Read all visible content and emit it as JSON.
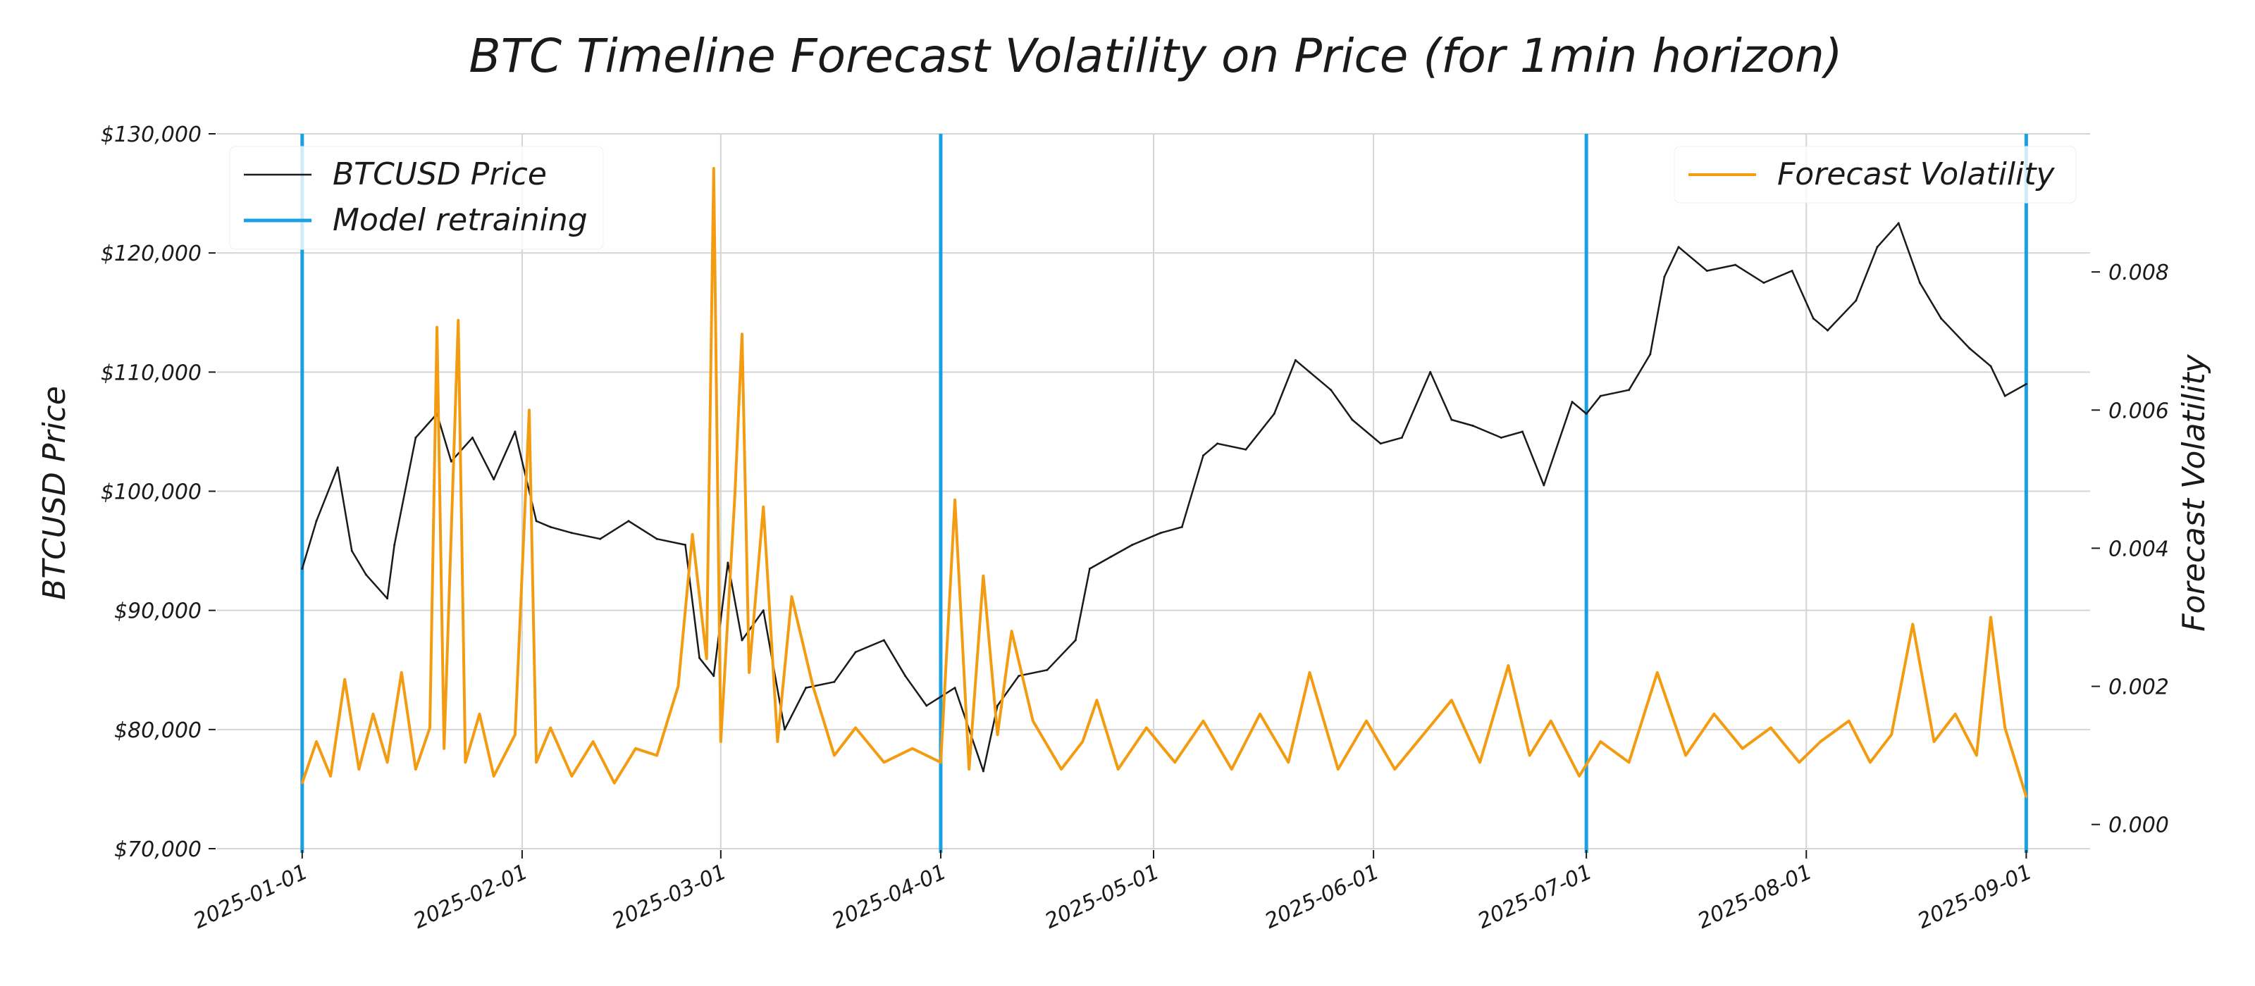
{
  "chart_data": {
    "type": "line",
    "title": "BTC Timeline Forecast Volatility on Price (for 1min horizon)",
    "ylabel": "BTCUSD Price",
    "y2label": "Forecast Volatility",
    "xlim": [
      "2024-12-20",
      "2025-09-10"
    ],
    "ylim": [
      70000,
      130000
    ],
    "y2lim": [
      -0.00035,
      0.01
    ],
    "x_ticks": [
      "2025-01-01",
      "2025-02-01",
      "2025-03-01",
      "2025-04-01",
      "2025-05-01",
      "2025-06-01",
      "2025-07-01",
      "2025-08-01",
      "2025-09-01"
    ],
    "y_ticks": [
      "$70,000",
      "$80,000",
      "$90,000",
      "$100,000",
      "$110,000",
      "$120,000",
      "$130,000"
    ],
    "y2_ticks": [
      "0.000",
      "0.002",
      "0.004",
      "0.006",
      "0.008"
    ],
    "grid": true,
    "legend": [
      {
        "label": "BTCUSD Price",
        "position": "top-left"
      },
      {
        "label": "Model retraining",
        "position": "top-left"
      },
      {
        "label": "Forecast Volatility",
        "position": "top-right"
      }
    ],
    "colors": {
      "price": "#1a1a1a",
      "retraining": "#1ba1e2",
      "volatility": "#f39c12"
    },
    "retraining_dates": [
      "2025-01-01",
      "2025-04-01",
      "2025-07-01",
      "2025-09-01"
    ],
    "series": [
      {
        "name": "BTCUSD Price",
        "axis": "left",
        "x": [
          "2025-01-01",
          "2025-01-03",
          "2025-01-06",
          "2025-01-08",
          "2025-01-10",
          "2025-01-13",
          "2025-01-14",
          "2025-01-17",
          "2025-01-20",
          "2025-01-22",
          "2025-01-25",
          "2025-01-28",
          "2025-01-31",
          "2025-02-03",
          "2025-02-05",
          "2025-02-08",
          "2025-02-12",
          "2025-02-16",
          "2025-02-20",
          "2025-02-24",
          "2025-02-26",
          "2025-02-28",
          "2025-03-02",
          "2025-03-04",
          "2025-03-07",
          "2025-03-10",
          "2025-03-13",
          "2025-03-17",
          "2025-03-20",
          "2025-03-24",
          "2025-03-27",
          "2025-03-30",
          "2025-04-03",
          "2025-04-07",
          "2025-04-09",
          "2025-04-12",
          "2025-04-16",
          "2025-04-20",
          "2025-04-22",
          "2025-04-25",
          "2025-04-28",
          "2025-05-02",
          "2025-05-05",
          "2025-05-08",
          "2025-05-10",
          "2025-05-14",
          "2025-05-18",
          "2025-05-21",
          "2025-05-23",
          "2025-05-26",
          "2025-05-29",
          "2025-06-02",
          "2025-06-05",
          "2025-06-09",
          "2025-06-12",
          "2025-06-15",
          "2025-06-19",
          "2025-06-22",
          "2025-06-25",
          "2025-06-29",
          "2025-07-01",
          "2025-07-03",
          "2025-07-07",
          "2025-07-10",
          "2025-07-12",
          "2025-07-14",
          "2025-07-18",
          "2025-07-22",
          "2025-07-26",
          "2025-07-30",
          "2025-08-02",
          "2025-08-04",
          "2025-08-08",
          "2025-08-11",
          "2025-08-14",
          "2025-08-17",
          "2025-08-20",
          "2025-08-24",
          "2025-08-27",
          "2025-08-29",
          "2025-09-01"
        ],
        "values": [
          93500,
          97500,
          102000,
          95000,
          93000,
          91000,
          95500,
          104500,
          106500,
          102500,
          104500,
          101000,
          105000,
          97500,
          97000,
          96500,
          96000,
          97500,
          96000,
          95500,
          86000,
          84500,
          94000,
          87500,
          90000,
          80000,
          83500,
          84000,
          86500,
          87500,
          84500,
          82000,
          83500,
          76500,
          82000,
          84500,
          85000,
          87500,
          93500,
          94500,
          95500,
          96500,
          97000,
          103000,
          104000,
          103500,
          106500,
          111000,
          110000,
          108500,
          106000,
          104000,
          104500,
          110000,
          106000,
          105500,
          104500,
          105000,
          100500,
          107500,
          106500,
          108000,
          108500,
          111500,
          118000,
          120500,
          118500,
          119000,
          117500,
          118500,
          114500,
          113500,
          116000,
          120500,
          122500,
          117500,
          114500,
          112000,
          110500,
          108000,
          109000
        ]
      },
      {
        "name": "Forecast Volatility",
        "axis": "right",
        "x": [
          "2025-01-01",
          "2025-01-03",
          "2025-01-05",
          "2025-01-07",
          "2025-01-09",
          "2025-01-11",
          "2025-01-13",
          "2025-01-15",
          "2025-01-17",
          "2025-01-19",
          "2025-01-20",
          "2025-01-21",
          "2025-01-23",
          "2025-01-24",
          "2025-01-26",
          "2025-01-28",
          "2025-01-31",
          "2025-02-02",
          "2025-02-03",
          "2025-02-05",
          "2025-02-08",
          "2025-02-11",
          "2025-02-14",
          "2025-02-17",
          "2025-02-20",
          "2025-02-23",
          "2025-02-25",
          "2025-02-27",
          "2025-02-28",
          "2025-03-01",
          "2025-03-03",
          "2025-03-04",
          "2025-03-05",
          "2025-03-07",
          "2025-03-09",
          "2025-03-11",
          "2025-03-14",
          "2025-03-17",
          "2025-03-20",
          "2025-03-24",
          "2025-03-28",
          "2025-04-01",
          "2025-04-03",
          "2025-04-05",
          "2025-04-07",
          "2025-04-09",
          "2025-04-11",
          "2025-04-14",
          "2025-04-18",
          "2025-04-21",
          "2025-04-23",
          "2025-04-26",
          "2025-04-30",
          "2025-05-04",
          "2025-05-08",
          "2025-05-12",
          "2025-05-16",
          "2025-05-20",
          "2025-05-23",
          "2025-05-27",
          "2025-05-31",
          "2025-06-04",
          "2025-06-08",
          "2025-06-12",
          "2025-06-16",
          "2025-06-20",
          "2025-06-23",
          "2025-06-26",
          "2025-06-30",
          "2025-07-03",
          "2025-07-07",
          "2025-07-11",
          "2025-07-15",
          "2025-07-19",
          "2025-07-23",
          "2025-07-27",
          "2025-07-31",
          "2025-08-03",
          "2025-08-07",
          "2025-08-10",
          "2025-08-13",
          "2025-08-16",
          "2025-08-19",
          "2025-08-22",
          "2025-08-25",
          "2025-08-27",
          "2025-08-29",
          "2025-09-01"
        ],
        "values": [
          0.0006,
          0.0012,
          0.0007,
          0.0021,
          0.0008,
          0.0016,
          0.0009,
          0.0022,
          0.0008,
          0.0014,
          0.0072,
          0.0011,
          0.0073,
          0.0009,
          0.0016,
          0.0007,
          0.0013,
          0.006,
          0.0009,
          0.0014,
          0.0007,
          0.0012,
          0.0006,
          0.0011,
          0.001,
          0.002,
          0.0042,
          0.0024,
          0.0095,
          0.0012,
          0.0048,
          0.0071,
          0.0022,
          0.0046,
          0.0012,
          0.0033,
          0.002,
          0.001,
          0.0014,
          0.0009,
          0.0011,
          0.0009,
          0.0047,
          0.0008,
          0.0036,
          0.0013,
          0.0028,
          0.0015,
          0.0008,
          0.0012,
          0.0018,
          0.0008,
          0.0014,
          0.0009,
          0.0015,
          0.0008,
          0.0016,
          0.0009,
          0.0022,
          0.0008,
          0.0015,
          0.0008,
          0.0013,
          0.0018,
          0.0009,
          0.0023,
          0.001,
          0.0015,
          0.0007,
          0.0012,
          0.0009,
          0.0022,
          0.001,
          0.0016,
          0.0011,
          0.0014,
          0.0009,
          0.0012,
          0.0015,
          0.0009,
          0.0013,
          0.0029,
          0.0012,
          0.0016,
          0.001,
          0.003,
          0.0014,
          0.0004
        ]
      }
    ]
  }
}
